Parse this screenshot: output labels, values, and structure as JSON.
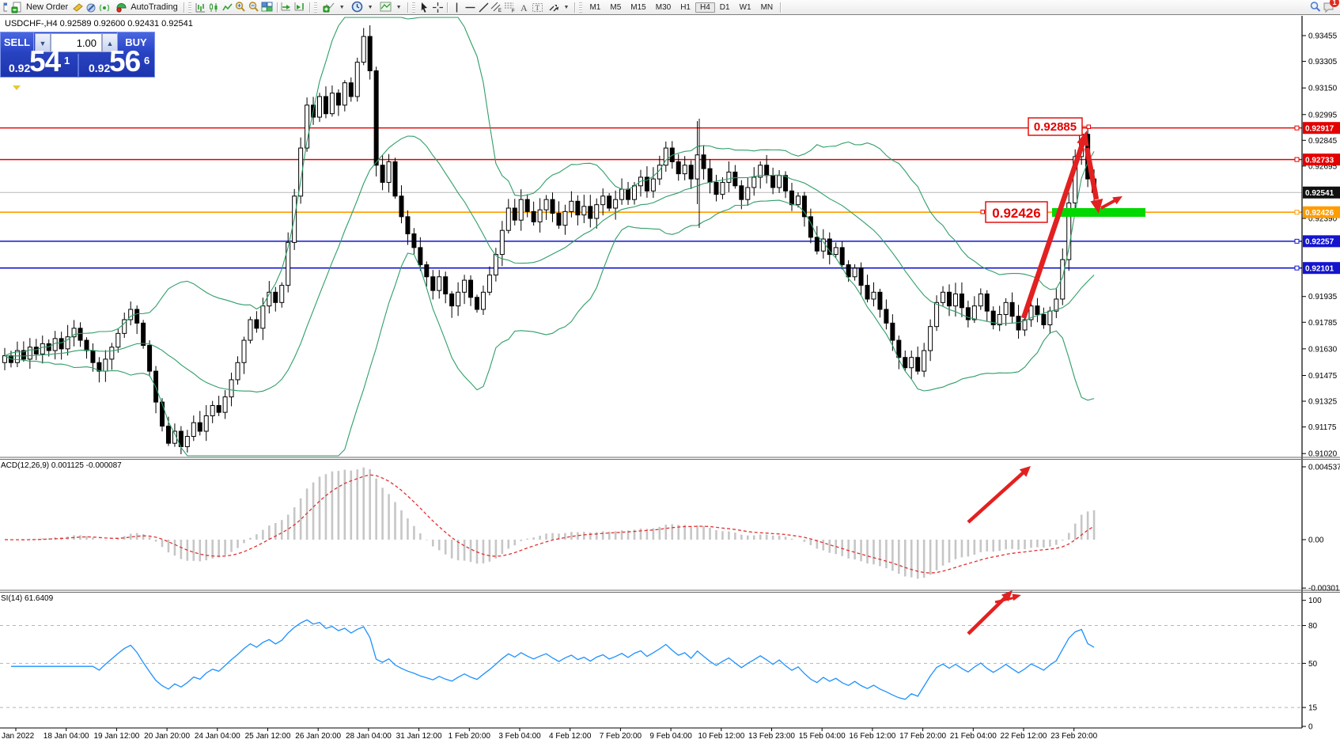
{
  "toolbar": {
    "new_order_label": "New Order",
    "autotrading_label": "AutoTrading",
    "timeframes": [
      "M1",
      "M5",
      "M15",
      "M30",
      "H1",
      "H4",
      "D1",
      "W1",
      "MN"
    ],
    "active_timeframe": "H4",
    "notification_count": "1"
  },
  "trade_panel": {
    "sell_label": "SELL",
    "buy_label": "BUY",
    "volume": "1.00",
    "sell_price_small": "0.92",
    "sell_price_big": "54",
    "sell_price_sup": "1",
    "buy_price_small": "0.92",
    "buy_price_big": "56",
    "buy_price_sup": "6"
  },
  "chart": {
    "symbol_info": "USDCHF-,H4  0.92589 0.92600 0.92431 0.92541",
    "macd": {
      "label_text": "ACD(12,26,9) 0.001125 -0.000087",
      "axis_values": [
        0.004537,
        0,
        -0.003016
      ],
      "axis_labels": [
        "0.004537",
        "0.00",
        "-0.003016"
      ]
    },
    "rsi": {
      "label_text": "SI(14) 61.6409",
      "axis_values": [
        100,
        80,
        50,
        15,
        0
      ],
      "dashed_levels": [
        80,
        50,
        15
      ]
    },
    "price_ticks": [
      0.93455,
      0.93305,
      0.9315,
      0.92995,
      0.92845,
      0.92695,
      0.9239,
      0.91935,
      0.91785,
      0.9163,
      0.91475,
      0.91325,
      0.91175,
      0.9102
    ],
    "price_tick_labels": [
      "0.93455",
      "0.93305",
      "0.93150",
      "0.92995",
      "0.92845",
      "0.92695",
      "0.92390",
      "0.91935",
      "0.91785",
      "0.91630",
      "0.91475",
      "0.91325",
      "0.91175",
      "0.91020"
    ],
    "price_badges": [
      {
        "text": "0.92917",
        "value": 0.92917,
        "bg": "#e40000",
        "square": true
      },
      {
        "text": "0.92733",
        "value": 0.92733,
        "bg": "#e40000",
        "square": true
      },
      {
        "text": "0.92541",
        "value": 0.92541,
        "bg": "#101010",
        "square": false
      },
      {
        "text": "0.92426",
        "value": 0.92426,
        "bg": "#ff9d00",
        "square": true
      },
      {
        "text": "0.92257",
        "value": 0.92257,
        "bg": "#1414cf",
        "square": true
      },
      {
        "text": "0.92101",
        "value": 0.92101,
        "bg": "#1414cf",
        "square": true
      }
    ],
    "time_labels": [
      "Jan 2022",
      "18 Jan 04:00",
      "19 Jan 12:00",
      "20 Jan 20:00",
      "24 Jan 04:00",
      "25 Jan 12:00",
      "26 Jan 20:00",
      "28 Jan 04:00",
      "31 Jan 12:00",
      "1 Feb 20:00",
      "3 Feb 04:00",
      "4 Feb 12:00",
      "7 Feb 20:00",
      "9 Feb 04:00",
      "10 Feb 12:00",
      "13 Feb 23:00",
      "15 Feb 04:00",
      "16 Feb 12:00",
      "17 Feb 20:00",
      "21 Feb 04:00",
      "22 Feb 12:00",
      "23 Feb 20:00"
    ]
  },
  "chart_data": {
    "type": "candlestick",
    "symbol": "USDCHF-",
    "timeframe": "H4",
    "ohlc_info": {
      "open": 0.92589,
      "high": 0.926,
      "low": 0.92431,
      "close": 0.92541
    },
    "price_axis": {
      "min": 0.9102,
      "max": 0.93455
    },
    "levels": {
      "resistance": [
        0.92917,
        0.92733
      ],
      "zone": 0.92426,
      "support": [
        0.92257,
        0.92101
      ],
      "current_bid": 0.92541
    },
    "annotations": {
      "high_price_label": "0.92885",
      "zone_price_label": "0.92426"
    },
    "macd_current": 0.001125,
    "macd_signal_current": -8.7e-05,
    "rsi_current": 61.6409,
    "spike_index": 110,
    "closes": [
      0.9159,
      0.9155,
      0.9162,
      0.9157,
      0.9164,
      0.916,
      0.9166,
      0.9162,
      0.9169,
      0.9163,
      0.917,
      0.9175,
      0.9168,
      0.9162,
      0.9155,
      0.915,
      0.9157,
      0.9164,
      0.9172,
      0.918,
      0.9186,
      0.9178,
      0.9165,
      0.915,
      0.9132,
      0.9118,
      0.9108,
      0.9115,
      0.9106,
      0.9112,
      0.912,
      0.9115,
      0.9124,
      0.913,
      0.9126,
      0.9135,
      0.9145,
      0.9155,
      0.9168,
      0.918,
      0.9175,
      0.9188,
      0.9196,
      0.919,
      0.92,
      0.9225,
      0.9252,
      0.928,
      0.9305,
      0.9298,
      0.931,
      0.93,
      0.9312,
      0.9305,
      0.9318,
      0.931,
      0.933,
      0.9345,
      0.9325,
      0.927,
      0.926,
      0.9272,
      0.9252,
      0.924,
      0.923,
      0.9222,
      0.9212,
      0.9205,
      0.9197,
      0.9205,
      0.9195,
      0.9188,
      0.9196,
      0.9203,
      0.9193,
      0.9186,
      0.9196,
      0.9206,
      0.9218,
      0.9232,
      0.9245,
      0.9238,
      0.925,
      0.9243,
      0.9237,
      0.9244,
      0.925,
      0.9242,
      0.9235,
      0.9243,
      0.9249,
      0.9241,
      0.9246,
      0.9239,
      0.9247,
      0.9252,
      0.9245,
      0.925,
      0.9256,
      0.925,
      0.9258,
      0.9263,
      0.9255,
      0.9262,
      0.927,
      0.928,
      0.9272,
      0.9265,
      0.927,
      0.9262,
      0.9276,
      0.9268,
      0.926,
      0.9253,
      0.926,
      0.9266,
      0.9258,
      0.925,
      0.9257,
      0.9263,
      0.927,
      0.9264,
      0.9257,
      0.9264,
      0.9255,
      0.9247,
      0.9252,
      0.924,
      0.9228,
      0.922,
      0.9227,
      0.9218,
      0.9222,
      0.9212,
      0.9205,
      0.921,
      0.92,
      0.9192,
      0.9196,
      0.9186,
      0.9178,
      0.9168,
      0.9158,
      0.9152,
      0.9158,
      0.915,
      0.9162,
      0.9176,
      0.919,
      0.9196,
      0.9188,
      0.9195,
      0.9187,
      0.918,
      0.9188,
      0.9195,
      0.9185,
      0.9177,
      0.9183,
      0.919,
      0.9182,
      0.9174,
      0.918,
      0.9188,
      0.9183,
      0.9177,
      0.9185,
      0.9192,
      0.9215,
      0.9248,
      0.9275,
      0.9288,
      0.9262,
      0.92541
    ]
  },
  "colors": {
    "resistance_line": "#e40000",
    "zone_line": "#ff9d00",
    "support_line": "#1414cf",
    "bollinger": "#2f9e68",
    "green_zone_bar": "#00d800",
    "annotation_arrow": "#e32020",
    "macd_histogram": "#c6c6c6",
    "macd_signal": "#e03030",
    "rsi_line": "#1e90ff"
  }
}
